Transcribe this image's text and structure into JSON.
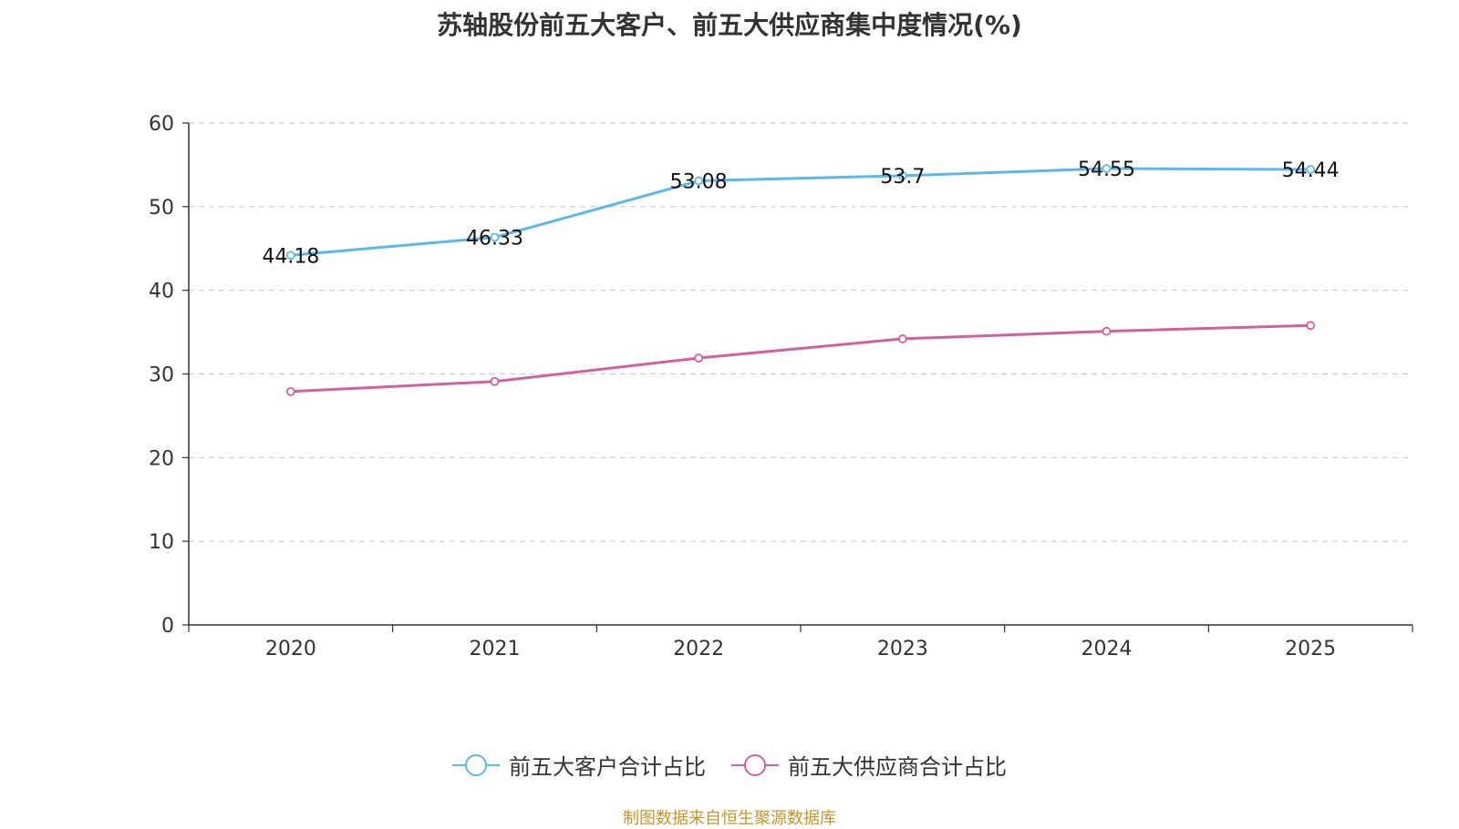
{
  "chart_data": {
    "type": "line",
    "title": "苏轴股份前五大客户、前五大供应商集中度情况(%)",
    "xlabel": "",
    "ylabel": "",
    "categories": [
      "2020",
      "2021",
      "2022",
      "2023",
      "2024",
      "2025"
    ],
    "ylim": [
      0,
      60
    ],
    "yticks": [
      0,
      10,
      20,
      30,
      40,
      50,
      60
    ],
    "grid": true,
    "legend_position": "bottom",
    "series": [
      {
        "name": "前五大客户合计占比",
        "values": [
          44.18,
          46.33,
          53.08,
          53.7,
          54.55,
          54.44
        ],
        "labels": [
          "44.18",
          "46.33",
          "53.08",
          "53.7",
          "54.55",
          "54.44"
        ],
        "color": "#5bb8ea",
        "show_labels": true
      },
      {
        "name": "前五大供应商合计占比",
        "values": [
          27.9,
          29.1,
          31.9,
          34.2,
          35.1,
          35.8
        ],
        "color": "#d2609f",
        "show_labels": false
      }
    ]
  },
  "source": "制图数据来自恒生聚源数据库"
}
